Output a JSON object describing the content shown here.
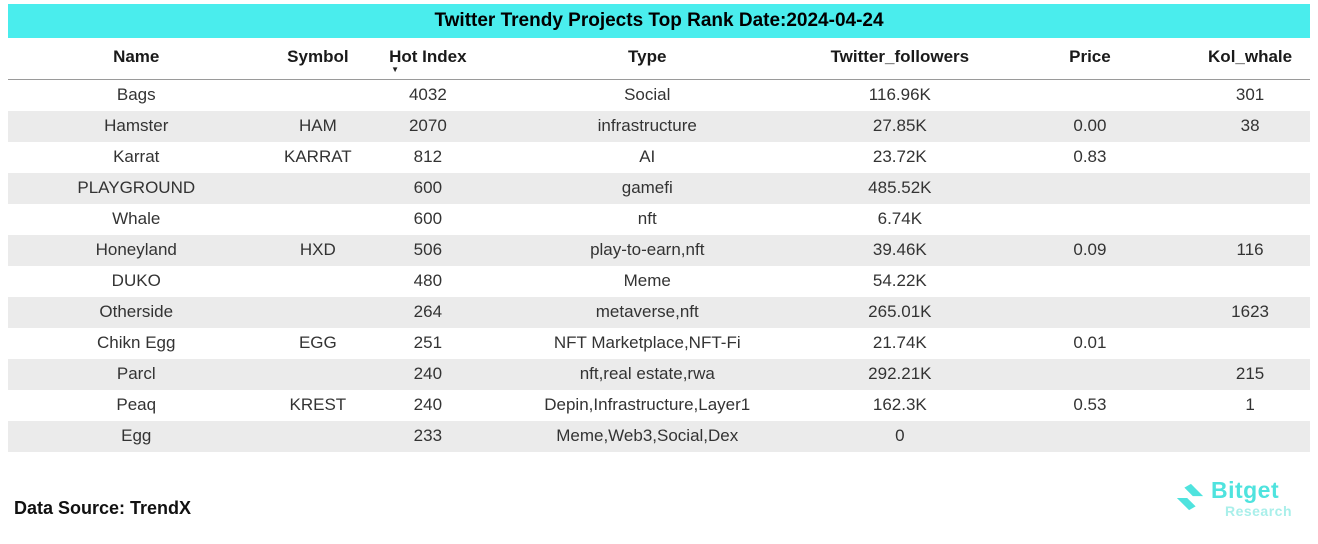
{
  "title": "Twitter Trendy Projects Top Rank Date:2024-04-24",
  "colors": {
    "title_bg": "#4AEDED",
    "row_alt": "#EBEBEB",
    "logo_cyan": "#4FE3DE",
    "logo_sub_cyan": "#A9EFEA"
  },
  "table": {
    "columns": [
      "Name",
      "Symbol",
      "Hot Index",
      "Type",
      "Twitter_followers",
      "Price",
      "Kol_whale"
    ],
    "sort_column": "Hot Index",
    "sort_icon": "▼",
    "rows": [
      {
        "name": "Bags",
        "symbol": "",
        "hot": "4032",
        "type": "Social",
        "followers": "116.96K",
        "price": "",
        "kol": "301"
      },
      {
        "name": "Hamster",
        "symbol": "HAM",
        "hot": "2070",
        "type": "infrastructure",
        "followers": "27.85K",
        "price": "0.00",
        "kol": "38"
      },
      {
        "name": "Karrat",
        "symbol": "KARRAT",
        "hot": "812",
        "type": "AI",
        "followers": "23.72K",
        "price": "0.83",
        "kol": ""
      },
      {
        "name": "PLAYGROUND",
        "symbol": "",
        "hot": "600",
        "type": "gamefi",
        "followers": "485.52K",
        "price": "",
        "kol": ""
      },
      {
        "name": "Whale",
        "symbol": "",
        "hot": "600",
        "type": "nft",
        "followers": "6.74K",
        "price": "",
        "kol": ""
      },
      {
        "name": "Honeyland",
        "symbol": "HXD",
        "hot": "506",
        "type": "play-to-earn,nft",
        "followers": "39.46K",
        "price": "0.09",
        "kol": "116"
      },
      {
        "name": "DUKO",
        "symbol": "",
        "hot": "480",
        "type": "Meme",
        "followers": "54.22K",
        "price": "",
        "kol": ""
      },
      {
        "name": "Otherside",
        "symbol": "",
        "hot": "264",
        "type": "metaverse,nft",
        "followers": "265.01K",
        "price": "",
        "kol": "1623"
      },
      {
        "name": "Chikn Egg",
        "symbol": "EGG",
        "hot": "251",
        "type": "NFT Marketplace,NFT-Fi",
        "followers": "21.74K",
        "price": "0.01",
        "kol": ""
      },
      {
        "name": "Parcl",
        "symbol": "",
        "hot": "240",
        "type": "nft,real estate,rwa",
        "followers": "292.21K",
        "price": "",
        "kol": "215"
      },
      {
        "name": "Peaq",
        "symbol": "KREST",
        "hot": "240",
        "type": "Depin,Infrastructure,Layer1",
        "followers": "162.3K",
        "price": "0.53",
        "kol": "1"
      },
      {
        "name": "Egg",
        "symbol": "",
        "hot": "233",
        "type": "Meme,Web3,Social,Dex",
        "followers": "0",
        "price": "",
        "kol": ""
      }
    ]
  },
  "footer": {
    "source": "Data Source: TrendX"
  },
  "logo": {
    "brand": "Bitget",
    "sub": "Research"
  },
  "chart_data": {
    "type": "table",
    "title": "Twitter Trendy Projects Top Rank Date:2024-04-24",
    "columns": [
      "Name",
      "Symbol",
      "Hot Index",
      "Type",
      "Twitter_followers",
      "Price",
      "Kol_whale"
    ],
    "rows": [
      [
        "Bags",
        "",
        4032,
        "Social",
        "116.96K",
        "",
        301
      ],
      [
        "Hamster",
        "HAM",
        2070,
        "infrastructure",
        "27.85K",
        0.0,
        38
      ],
      [
        "Karrat",
        "KARRAT",
        812,
        "AI",
        "23.72K",
        0.83,
        ""
      ],
      [
        "PLAYGROUND",
        "",
        600,
        "gamefi",
        "485.52K",
        "",
        ""
      ],
      [
        "Whale",
        "",
        600,
        "nft",
        "6.74K",
        "",
        ""
      ],
      [
        "Honeyland",
        "HXD",
        506,
        "play-to-earn,nft",
        "39.46K",
        0.09,
        116
      ],
      [
        "DUKO",
        "",
        480,
        "Meme",
        "54.22K",
        "",
        ""
      ],
      [
        "Otherside",
        "",
        264,
        "metaverse,nft",
        "265.01K",
        "",
        1623
      ],
      [
        "Chikn Egg",
        "EGG",
        251,
        "NFT Marketplace,NFT-Fi",
        "21.74K",
        0.01,
        ""
      ],
      [
        "Parcl",
        "",
        240,
        "nft,real estate,rwa",
        "292.21K",
        "",
        215
      ],
      [
        "Peaq",
        "KREST",
        240,
        "Depin,Infrastructure,Layer1",
        "162.3K",
        0.53,
        1
      ],
      [
        "Egg",
        "",
        233,
        "Meme,Web3,Social,Dex",
        0,
        "",
        ""
      ]
    ],
    "sorted_by": "Hot Index",
    "sort_direction": "descending",
    "source_note": "Data Source: TrendX"
  }
}
